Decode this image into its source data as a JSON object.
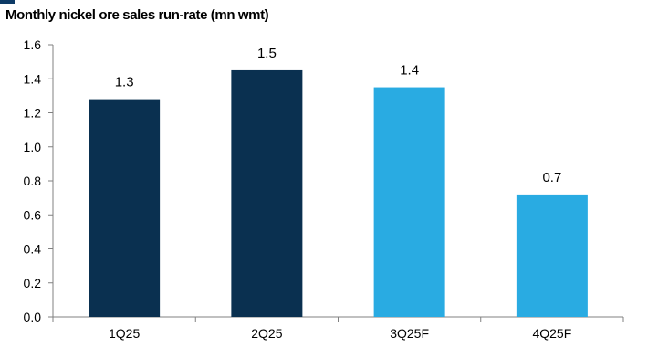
{
  "chart_data": {
    "type": "bar",
    "title": "Monthly nickel ore sales run-rate (mn wmt)",
    "categories": [
      "1Q25",
      "2Q25",
      "3Q25F",
      "4Q25F"
    ],
    "values": [
      1.28,
      1.45,
      1.35,
      0.72
    ],
    "data_labels": [
      "1.3",
      "1.5",
      "1.4",
      "0.7"
    ],
    "bar_colors": [
      "#0a3050",
      "#0a3050",
      "#29abe2",
      "#29abe2"
    ],
    "xlabel": "",
    "ylabel": "",
    "ylim": [
      0,
      1.6
    ],
    "yticks": [
      "0.0",
      "0.2",
      "0.4",
      "0.6",
      "0.8",
      "1.0",
      "1.2",
      "1.4",
      "1.6"
    ],
    "grid": false,
    "legend": "none"
  }
}
